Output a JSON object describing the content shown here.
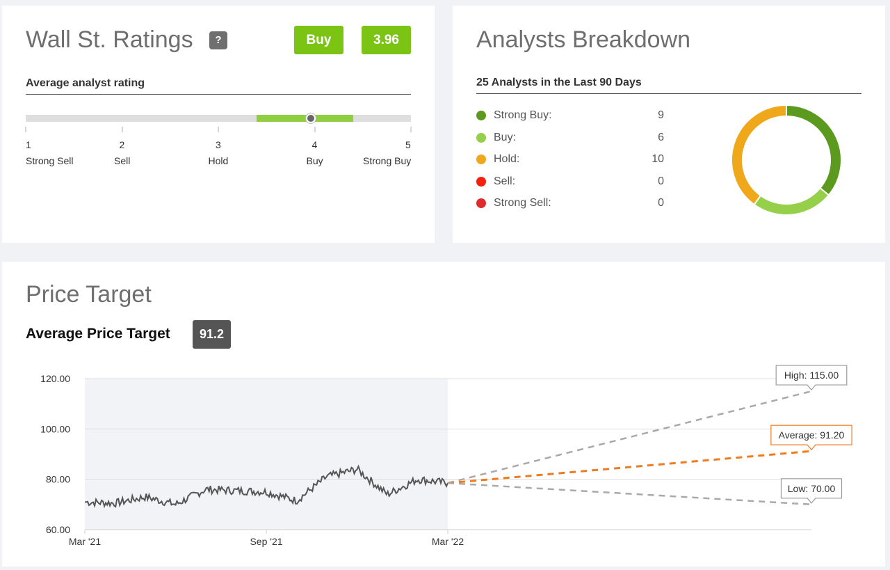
{
  "ratings": {
    "title": "Wall St. Ratings",
    "help_label": "?",
    "rating_label": "Buy",
    "rating_score": "3.96",
    "section_label": "Average analyst rating",
    "scale": [
      {
        "num": "1",
        "word": "Strong Sell"
      },
      {
        "num": "2",
        "word": "Sell"
      },
      {
        "num": "3",
        "word": "Hold"
      },
      {
        "num": "4",
        "word": "Buy"
      },
      {
        "num": "5",
        "word": "Strong Buy"
      }
    ],
    "scale_min": 1,
    "scale_max": 5,
    "score_value": 3.96,
    "range_low": 3.4,
    "range_high": 4.4
  },
  "breakdown": {
    "title": "Analysts Breakdown",
    "section_label": "25 Analysts in the Last 90 Days",
    "items": [
      {
        "label": "Strong Buy:",
        "count": "9",
        "value": 9,
        "color": "#5b9a1e"
      },
      {
        "label": "Buy:",
        "count": "6",
        "value": 6,
        "color": "#96d04b"
      },
      {
        "label": "Hold:",
        "count": "10",
        "value": 10,
        "color": "#f0a81b"
      },
      {
        "label": "Sell:",
        "count": "0",
        "value": 0,
        "color": "#f5200c"
      },
      {
        "label": "Strong Sell:",
        "count": "0",
        "value": 0,
        "color": "#de2b2b"
      }
    ]
  },
  "price": {
    "title": "Price Target",
    "avg_label": "Average Price Target",
    "avg_value": "91.2"
  },
  "chart_data": {
    "type": "line",
    "ylim": [
      60,
      120
    ],
    "y_ticks": [
      "60.00",
      "80.00",
      "100.00",
      "120.00"
    ],
    "x_ticks": [
      "Mar '21",
      "Sep '21",
      "Mar '22"
    ],
    "history_end_label": "Mar '22",
    "projection_end": "Mar '23",
    "series": [
      {
        "x": [
          "2021-03",
          "2021-04",
          "2021-05",
          "2021-06",
          "2021-07",
          "2021-08",
          "2021-09",
          "2021-10",
          "2021-11",
          "2021-12",
          "2022-01",
          "2022-02",
          "2022-03"
        ],
        "values": [
          71,
          70.5,
          73,
          70,
          76,
          75.5,
          75,
          71.5,
          81,
          84,
          74,
          80,
          78.5
        ]
      }
    ],
    "targets": [
      {
        "label": "High: 115.00",
        "value": 115.0,
        "color": "#a9a9a9",
        "border": "#999999"
      },
      {
        "label": "Average: 91.20",
        "value": 91.2,
        "color": "#ef7b1d",
        "border": "#ef7b1d"
      },
      {
        "label": "Low: 70.00",
        "value": 70.0,
        "color": "#a9a9a9",
        "border": "#999999"
      }
    ]
  }
}
